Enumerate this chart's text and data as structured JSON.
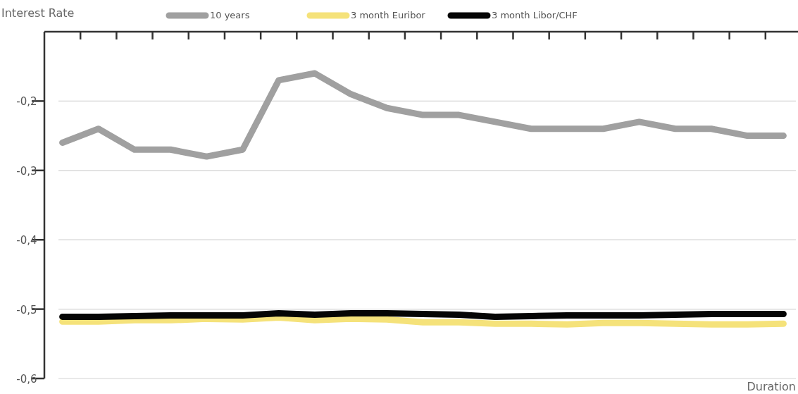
{
  "chart_data": {
    "type": "line",
    "ylabel": "Interest Rate",
    "xlabel": "Duration",
    "categories": [
      null,
      null,
      null,
      null,
      null,
      null,
      null,
      null,
      null,
      null,
      null,
      null,
      null,
      null,
      null,
      null,
      null,
      null,
      null,
      null,
      null
    ],
    "ylim": [
      -0.6,
      -0.1
    ],
    "yticks": [
      {
        "value": -0.6,
        "label": "-0,6"
      },
      {
        "value": -0.5,
        "label": "-0,5"
      },
      {
        "value": -0.4,
        "label": "-0,4"
      },
      {
        "value": -0.3,
        "label": "-0,3"
      },
      {
        "value": -0.2,
        "label": "-0,2"
      }
    ],
    "grid": "y",
    "legend": "top",
    "line_style": "solid",
    "series": [
      {
        "name": "10 years",
        "color": "#a0a0a0",
        "values": [
          -0.26,
          -0.24,
          -0.27,
          -0.27,
          -0.28,
          -0.27,
          -0.17,
          -0.16,
          -0.19,
          -0.21,
          -0.22,
          -0.22,
          -0.23,
          -0.24,
          -0.24,
          -0.24,
          -0.23,
          -0.24,
          -0.24,
          -0.25,
          -0.25
        ]
      },
      {
        "name": "3 month Euribor",
        "color": "#f5e27a",
        "values": [
          -0.518,
          -0.518,
          -0.516,
          -0.516,
          -0.514,
          -0.515,
          -0.512,
          -0.516,
          -0.514,
          -0.515,
          -0.519,
          -0.519,
          -0.521,
          -0.521,
          -0.522,
          -0.52,
          -0.52,
          -0.521,
          -0.522,
          -0.522,
          -0.521
        ]
      },
      {
        "name": "3 month Libor/CHF",
        "color": "#050505",
        "values": [
          -0.511,
          -0.511,
          -0.51,
          -0.509,
          -0.509,
          -0.509,
          -0.506,
          -0.508,
          -0.506,
          -0.506,
          -0.507,
          -0.508,
          -0.511,
          -0.51,
          -0.509,
          -0.509,
          -0.509,
          -0.508,
          -0.507,
          -0.507,
          -0.507
        ]
      }
    ]
  }
}
